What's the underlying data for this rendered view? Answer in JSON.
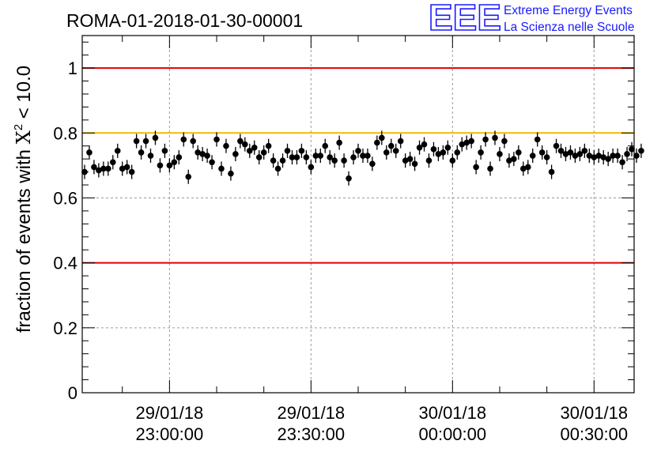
{
  "header": {
    "title": "ROMA-01-2018-01-30-00001",
    "logo": {
      "mark": "EEE",
      "line1": "Extreme Energy Events",
      "line2": "La Scienza nelle Scuole"
    }
  },
  "chart_data": {
    "type": "scatter",
    "title": "ROMA-01-2018-01-30-00001",
    "ylabel_prefix": "fraction of events with ",
    "ylabel_symbol": "X",
    "ylabel_sup": "2",
    "ylabel_suffix": " < 10.0",
    "xlabel": "",
    "ylim": [
      0,
      1.1
    ],
    "xlim_minutes": [
      0,
      117
    ],
    "yticks": [
      {
        "value": 0,
        "label": "0"
      },
      {
        "value": 0.2,
        "label": "0.2"
      },
      {
        "value": 0.4,
        "label": "0.4"
      },
      {
        "value": 0.6,
        "label": "0.6"
      },
      {
        "value": 0.8,
        "label": "0.8"
      },
      {
        "value": 1,
        "label": "1"
      }
    ],
    "xticks": [
      {
        "t": 18.5,
        "line1": "29/01/18",
        "line2": "23:00:00"
      },
      {
        "t": 48.5,
        "line1": "29/01/18",
        "line2": "23:30:00"
      },
      {
        "t": 78.5,
        "line1": "30/01/18",
        "line2": "00:00:00"
      },
      {
        "t": 108.5,
        "line1": "30/01/18",
        "line2": "00:30:00"
      }
    ],
    "grid": true,
    "reference_lines": [
      {
        "y": 1.0,
        "color": "#e00000"
      },
      {
        "y": 0.8,
        "color": "#f5b800"
      },
      {
        "y": 0.4,
        "color": "#e00000"
      }
    ],
    "error_bar": 0.022,
    "series": [
      {
        "marker_color": "#000000",
        "values": [
          0.68,
          0.74,
          0.695,
          0.685,
          0.69,
          0.69,
          0.71,
          0.745,
          0.69,
          0.695,
          0.68,
          0.775,
          0.74,
          0.775,
          0.73,
          0.785,
          0.7,
          0.745,
          0.7,
          0.71,
          0.725,
          0.78,
          0.665,
          0.775,
          0.74,
          0.735,
          0.73,
          0.71,
          0.78,
          0.69,
          0.76,
          0.675,
          0.735,
          0.775,
          0.765,
          0.745,
          0.755,
          0.725,
          0.74,
          0.76,
          0.715,
          0.69,
          0.715,
          0.745,
          0.725,
          0.725,
          0.745,
          0.725,
          0.695,
          0.73,
          0.73,
          0.76,
          0.725,
          0.715,
          0.77,
          0.715,
          0.66,
          0.725,
          0.745,
          0.73,
          0.73,
          0.705,
          0.77,
          0.785,
          0.74,
          0.76,
          0.745,
          0.775,
          0.715,
          0.72,
          0.705,
          0.755,
          0.765,
          0.715,
          0.75,
          0.735,
          0.74,
          0.755,
          0.715,
          0.74,
          0.765,
          0.77,
          0.775,
          0.695,
          0.74,
          0.78,
          0.69,
          0.785,
          0.735,
          0.775,
          0.715,
          0.72,
          0.74,
          0.69,
          0.695,
          0.73,
          0.78,
          0.74,
          0.725,
          0.68,
          0.76,
          0.745,
          0.735,
          0.74,
          0.73,
          0.735,
          0.745,
          0.73,
          0.725,
          0.73,
          0.725,
          0.72,
          0.73,
          0.73,
          0.71,
          0.735,
          0.75,
          0.73,
          0.745
        ]
      }
    ]
  }
}
